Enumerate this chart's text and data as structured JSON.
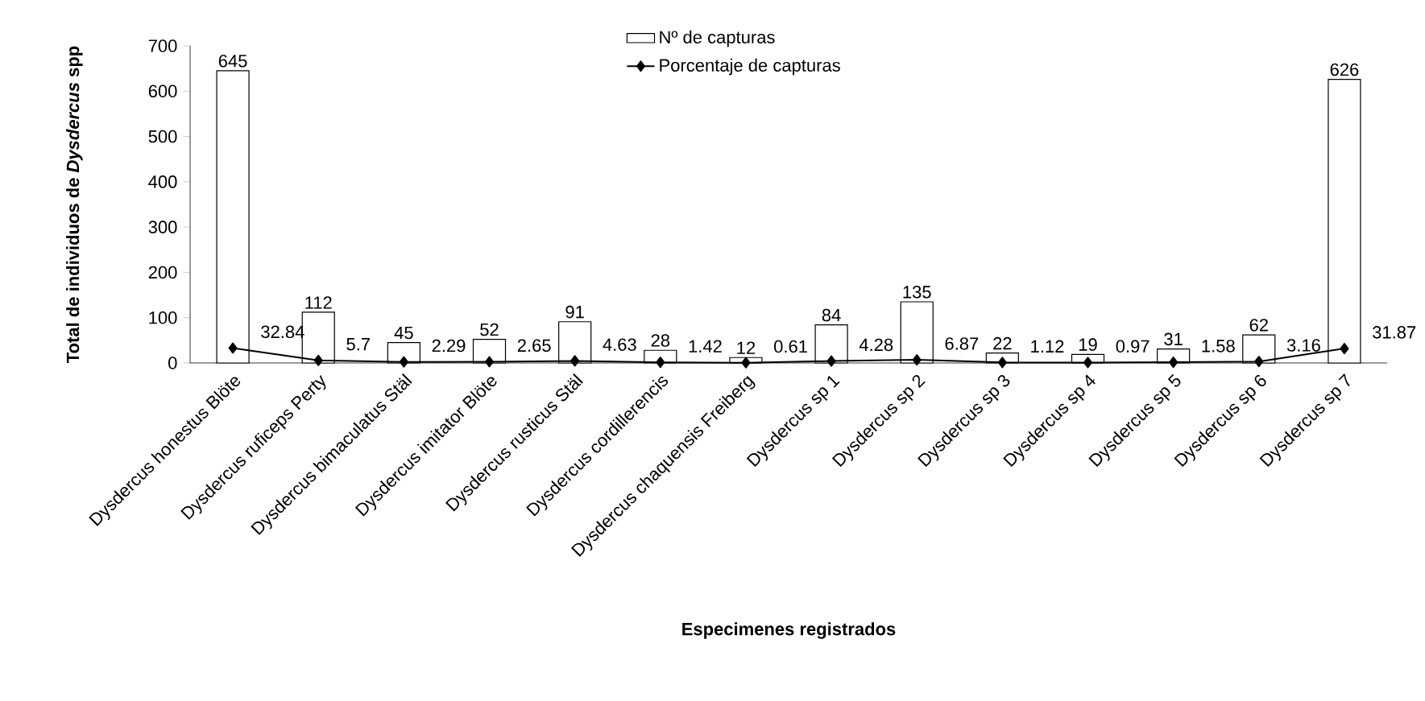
{
  "chart_data": {
    "type": "bar",
    "xlabel": "Especimenes registrados",
    "ylabel": "Total de individuos de *Dysdercus* spp",
    "categories": [
      "Dysdercus honestus Blöte",
      "Dysdercus ruficeps Perty",
      "Dysdercus bimaculatus  Stäl",
      "Dysdercus imitator Blöte",
      "Dysdercus rusticus Stäl",
      "Dysdercus cordillerencis",
      "Dysdercus chaquensis Freiberg",
      "Dysdercus sp 1",
      "Dysdercus sp 2",
      "Dysdercus sp 3",
      "Dysdercus sp 4",
      "Dysdercus sp 5",
      "Dysdercus sp 6",
      "Dysdercus sp 7"
    ],
    "series": [
      {
        "name": "Nº de capturas",
        "color": "#ffffff",
        "values": [
          645,
          112,
          45,
          52,
          91,
          28,
          12,
          84,
          135,
          22,
          19,
          31,
          62,
          626
        ]
      },
      {
        "name": "Porcentaje de capturas",
        "type": "line",
        "color": "#000000",
        "marker": "diamond",
        "values": [
          32.84,
          5.7,
          2.29,
          2.65,
          4.63,
          1.42,
          0.61,
          4.28,
          6.87,
          1.12,
          0.97,
          1.58,
          3.16,
          31.87
        ]
      }
    ],
    "ylim": [
      0,
      700
    ],
    "yticks": [
      0,
      100,
      200,
      300,
      400,
      500,
      600,
      700
    ],
    "data_labels": true,
    "legend": "top",
    "grid": false
  }
}
